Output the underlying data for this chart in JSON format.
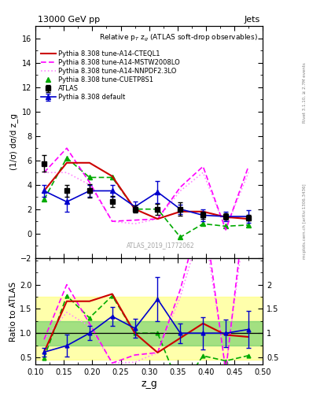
{
  "title_top": "13000 GeV pp",
  "title_right": "Jets",
  "plot_title": "Relative p_{T} z_{g} (ATLAS soft-drop observables)",
  "ylabel_main": "(1/σ) dσ/d z_g",
  "ylabel_ratio": "Ratio to ATLAS",
  "xlabel": "z_g",
  "watermark": "ATLAS_2019_I1772062",
  "x_vals": [
    0.115,
    0.155,
    0.195,
    0.235,
    0.275,
    0.315,
    0.355,
    0.395,
    0.435,
    0.475
  ],
  "xlim": [
    0.1,
    0.5
  ],
  "ylim_main": [
    -2,
    17
  ],
  "ylim_ratio": [
    0.35,
    2.55
  ],
  "yticks_main": [
    -2,
    0,
    2,
    4,
    6,
    8,
    10,
    12,
    14,
    16
  ],
  "yticks_ratio": [
    0.5,
    1.0,
    1.5,
    2.0
  ],
  "atlas_y": [
    5.75,
    3.5,
    3.5,
    2.6,
    2.0,
    2.0,
    2.0,
    1.5,
    1.4,
    1.3
  ],
  "atlas_yerr": [
    0.7,
    0.5,
    0.55,
    0.45,
    0.3,
    0.45,
    0.55,
    0.3,
    0.25,
    0.25
  ],
  "py_default_y": [
    3.5,
    2.6,
    3.5,
    3.5,
    2.2,
    3.4,
    2.0,
    1.5,
    1.4,
    1.4
  ],
  "py_default_yerr": [
    0.5,
    0.8,
    0.5,
    0.5,
    0.4,
    0.9,
    0.4,
    0.5,
    0.4,
    0.5
  ],
  "py_cteq_y": [
    3.5,
    5.8,
    5.8,
    4.7,
    2.0,
    1.2,
    1.8,
    1.8,
    1.35,
    1.2
  ],
  "py_mstw_y": [
    5.0,
    7.0,
    4.2,
    1.0,
    1.1,
    1.2,
    3.8,
    5.5,
    0.3,
    5.5
  ],
  "py_nnpdf_y": [
    5.0,
    5.0,
    4.0,
    1.0,
    0.8,
    1.2,
    3.5,
    5.0,
    0.4,
    5.0
  ],
  "py_cuetp_y": [
    2.8,
    6.2,
    4.6,
    4.6,
    2.0,
    2.0,
    -0.3,
    0.8,
    0.6,
    0.7
  ],
  "color_atlas": "#000000",
  "color_default": "#0000CC",
  "color_cteq": "#CC0000",
  "color_mstw": "#FF00FF",
  "color_nnpdf": "#FF88FF",
  "color_cuetp": "#00AA00",
  "band_yellow": "#FFFF66",
  "band_green": "#66CC66",
  "band_yellow_lo": 0.45,
  "band_yellow_hi": 1.75,
  "band_green_lo": 0.75,
  "band_green_hi": 1.25,
  "legend_entries": [
    "ATLAS",
    "Pythia 8.308 default",
    "Pythia 8.308 tune-A14-CTEQL1",
    "Pythia 8.308 tune-A14-MSTW2008LO",
    "Pythia 8.308 tune-A14-NNPDF2.3LO",
    "Pythia 8.308 tune-CUETP8S1"
  ],
  "right_text1": "Rivet 3.1.10, ≥ 2.7M events",
  "right_text2": "mcplots.cern.ch [arXiv:1306.3436]"
}
